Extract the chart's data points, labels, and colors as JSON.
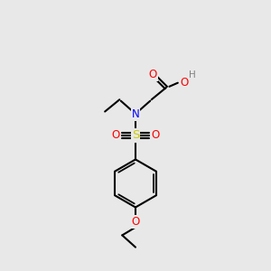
{
  "bg_color": "#e8e8e8",
  "atom_colors": {
    "C": "#000000",
    "H": "#808080",
    "N": "#0000ff",
    "O": "#ff0000",
    "S": "#cccc00"
  },
  "bond_color": "#000000",
  "bond_width": 1.5,
  "font_size": 8.5
}
